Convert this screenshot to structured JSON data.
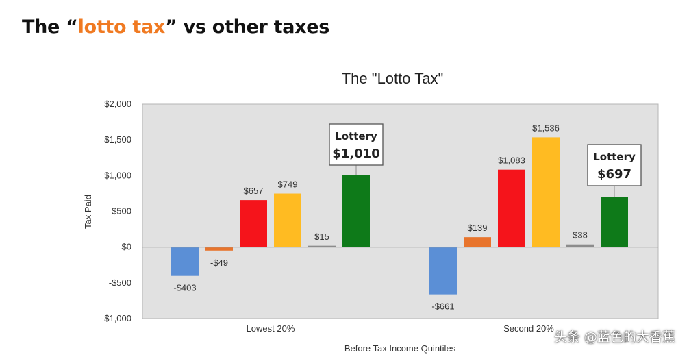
{
  "slide": {
    "title_prefix": "The “",
    "title_accent": "lotto tax",
    "title_suffix": "” vs other taxes",
    "accent_color": "#f07a22"
  },
  "watermark": "头条 @蓝色的大香蕉",
  "chart_data": {
    "type": "bar",
    "title": "The \"Lotto Tax\"",
    "xlabel": "Before Tax Income Quintiles",
    "ylabel": "Tax Paid",
    "ylim": [
      -1000,
      2000
    ],
    "yticks": [
      2000,
      1500,
      1000,
      500,
      0,
      -500,
      -1000
    ],
    "ytick_labels": [
      "$2,000",
      "$1,500",
      "$1,000",
      "$500",
      "$0",
      "-$500",
      "-$1,000"
    ],
    "grid": false,
    "legend": "none",
    "categories": [
      "Lowest 20%",
      "Second 20%"
    ],
    "bar_colors": [
      "#5b8fd6",
      "#e8742c",
      "#f5141b",
      "#ffbb22",
      "#8c8c8c",
      "#0e7a19"
    ],
    "groups": [
      {
        "category": "Lowest 20%",
        "values": [
          -403,
          -49,
          657,
          749,
          15,
          1010
        ],
        "labels": [
          "-$403",
          "-$49",
          "$657",
          "$749",
          "$15",
          null
        ]
      },
      {
        "category": "Second 20%",
        "values": [
          -661,
          139,
          1083,
          1536,
          38,
          697
        ],
        "labels": [
          "-$661",
          "$139",
          "$1,083",
          "$1,536",
          "$38",
          null
        ]
      }
    ],
    "callouts": [
      {
        "category": "Lowest 20%",
        "title": "Lottery",
        "value_label": "$1,010"
      },
      {
        "category": "Second 20%",
        "title": "Lottery",
        "value_label": "$697"
      }
    ]
  }
}
